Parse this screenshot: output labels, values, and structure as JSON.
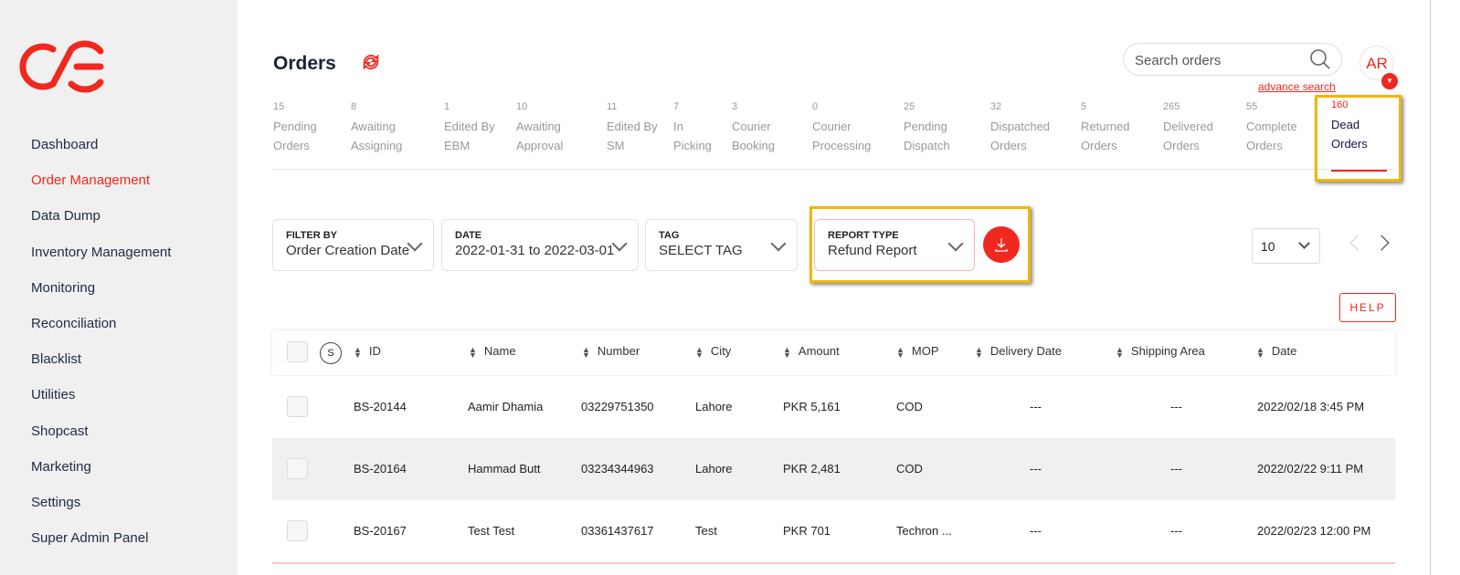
{
  "brand": {
    "logo_text": "OE",
    "color": "#f0281e"
  },
  "sidebar": {
    "items": [
      {
        "label": "Dashboard",
        "active": false
      },
      {
        "label": "Order Management",
        "active": true
      },
      {
        "label": "Data Dump",
        "active": false
      },
      {
        "label": "Inventory Management",
        "active": false
      },
      {
        "label": "Monitoring",
        "active": false
      },
      {
        "label": "Reconciliation",
        "active": false
      },
      {
        "label": "Blacklist",
        "active": false
      },
      {
        "label": "Utilities",
        "active": false
      },
      {
        "label": "Shopcast",
        "active": false
      },
      {
        "label": "Marketing",
        "active": false
      },
      {
        "label": "Settings",
        "active": false
      },
      {
        "label": "Super Admin Panel",
        "active": false
      }
    ]
  },
  "header": {
    "title": "Orders",
    "search_placeholder": "Search orders",
    "advance_search": "advance search",
    "avatar": "AR"
  },
  "status_tabs": [
    {
      "count": "15",
      "l1": "Pending",
      "l2": "Orders"
    },
    {
      "count": "8",
      "l1": "Awaiting",
      "l2": "Assigning"
    },
    {
      "count": "1",
      "l1": "Edited By",
      "l2": "EBM"
    },
    {
      "count": "10",
      "l1": "Awaiting",
      "l2": "Approval"
    },
    {
      "count": "11",
      "l1": "Edited By",
      "l2": "SM"
    },
    {
      "count": "7",
      "l1": "In",
      "l2": "Picking"
    },
    {
      "count": "3",
      "l1": "Courier",
      "l2": "Booking"
    },
    {
      "count": "0",
      "l1": "Courier",
      "l2": "Processing"
    },
    {
      "count": "25",
      "l1": "Pending",
      "l2": "Dispatch"
    },
    {
      "count": "32",
      "l1": "Dispatched",
      "l2": "Orders"
    },
    {
      "count": "5",
      "l1": "Returned",
      "l2": "Orders"
    },
    {
      "count": "265",
      "l1": "Delivered",
      "l2": "Orders"
    },
    {
      "count": "55",
      "l1": "Complete",
      "l2": "Orders"
    },
    {
      "count": "160",
      "l1": "Dead",
      "l2": "Orders",
      "active": true
    }
  ],
  "filters": [
    {
      "label": "FILTER BY",
      "value": "Order Creation Date"
    },
    {
      "label": "DATE",
      "value": "2022-01-31 to 2022-03-01"
    },
    {
      "label": "TAG",
      "value": "SELECT TAG"
    },
    {
      "label": "REPORT TYPE",
      "value": "Refund Report"
    }
  ],
  "page_size": "10",
  "help_label": "HELP",
  "table": {
    "select_all_label": "S",
    "columns": [
      "ID",
      "Name",
      "Number",
      "City",
      "Amount",
      "MOP",
      "Delivery Date",
      "Shipping Area",
      "Date"
    ],
    "rows": [
      [
        "BS-20144",
        "Aamir Dhamia",
        "03229751350",
        "Lahore",
        "PKR 5,161",
        "COD",
        "---",
        "---",
        "2022/02/18 3:45 PM"
      ],
      [
        "BS-20164",
        "Hammad Butt",
        "03234344963",
        "Lahore",
        "PKR 2,481",
        "COD",
        "---",
        "---",
        "2022/02/22 9:11 PM"
      ],
      [
        "BS-20167",
        "Test Test",
        "03361437617",
        "Test",
        "PKR 701",
        "Techron ...",
        "---",
        "---",
        "2022/02/23 12:00 PM"
      ]
    ]
  }
}
